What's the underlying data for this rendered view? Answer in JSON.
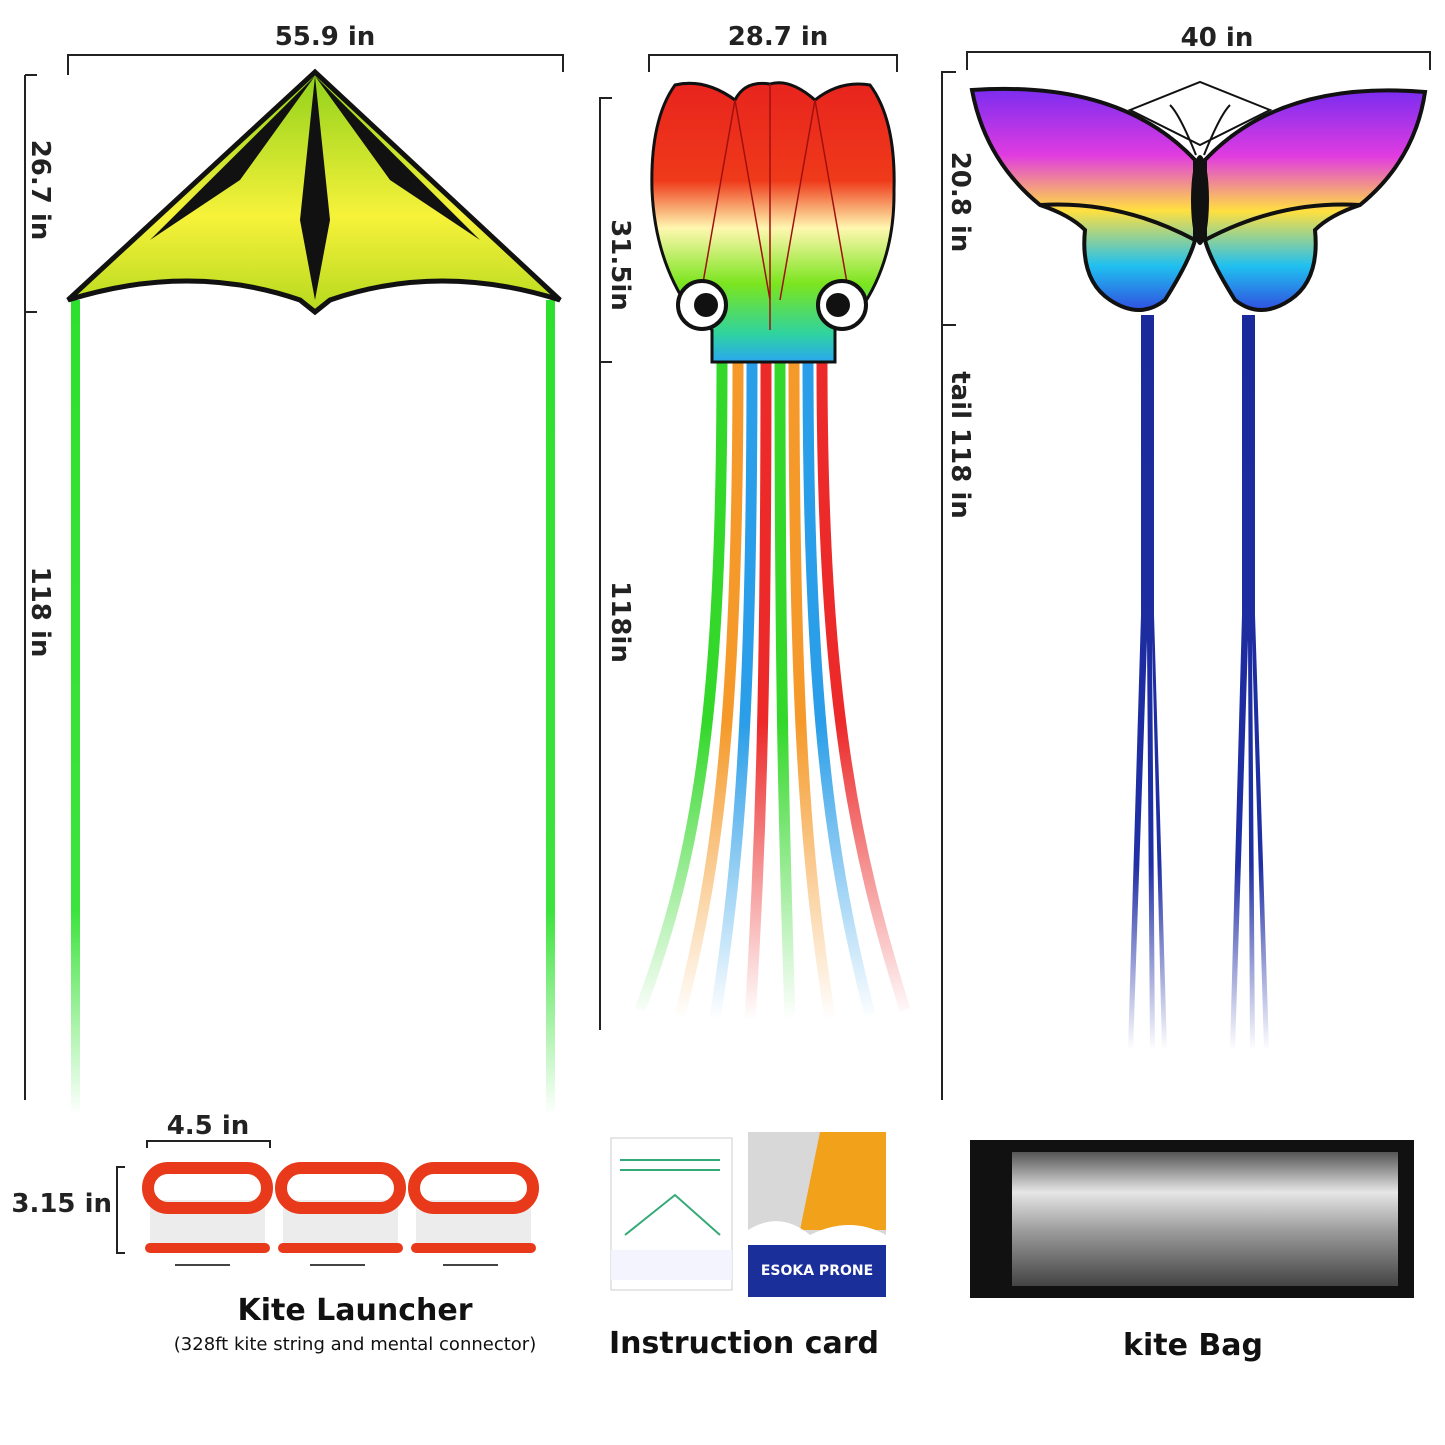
{
  "delta_kite": {
    "width": "55.9 in",
    "height": "26.7 in",
    "tail": "118 in"
  },
  "octopus_kite": {
    "width": "28.7 in",
    "height": "31.5in",
    "tail": "118in"
  },
  "butterfly_kite": {
    "width": "40 in",
    "height": "20.8 in",
    "tail": "tail 118 in"
  },
  "kite_launcher": {
    "width": "4.5 in",
    "height": "3.15 in",
    "title": "Kite Launcher",
    "caption": "(328ft kite string and mental connector)"
  },
  "instruction_card": {
    "title": "Instruction card",
    "brand": "ESOKA PRONE"
  },
  "kite_bag": {
    "title": "kite Bag"
  }
}
